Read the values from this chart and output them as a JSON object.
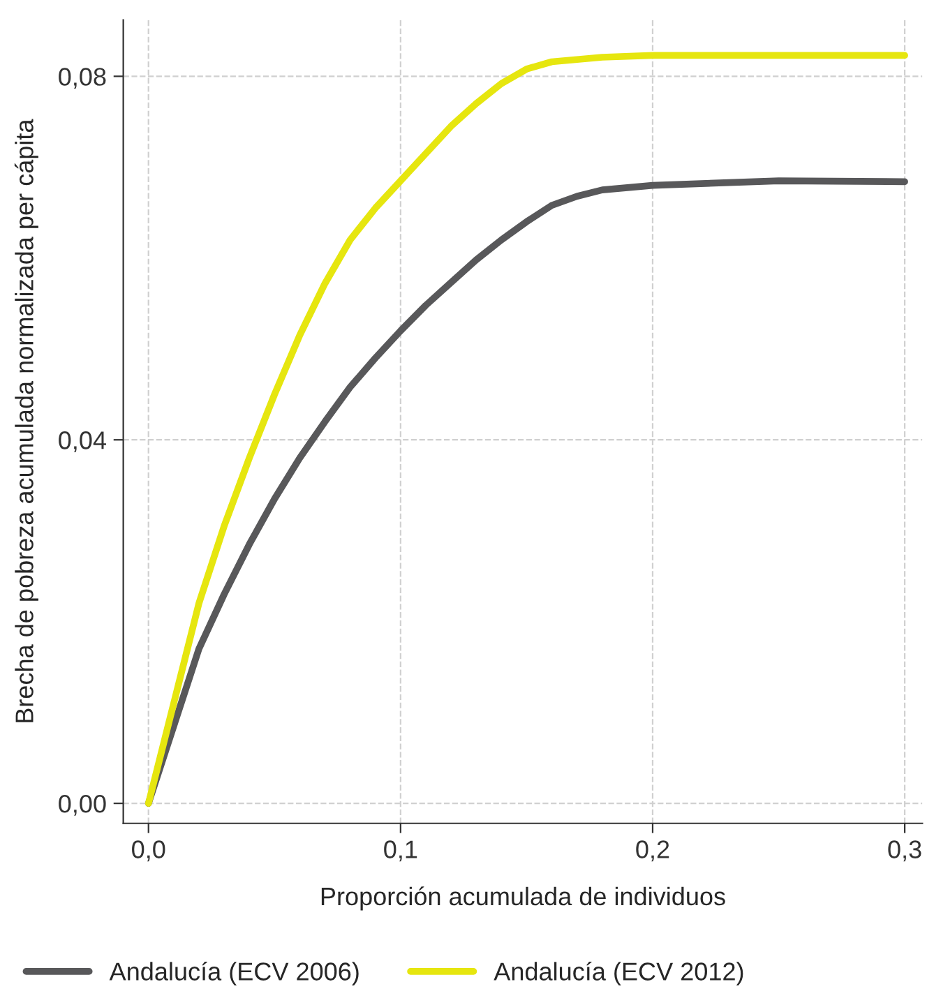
{
  "chart_data": {
    "type": "line",
    "xlabel": "Proporción acumulada de individuos",
    "ylabel": "Brecha de pobreza acumulada normalizada per cápita",
    "xlim": [
      -0.01,
      0.307
    ],
    "ylim": [
      -0.0022,
      0.0862
    ],
    "xticks": [
      {
        "value": 0,
        "label": "0,0"
      },
      {
        "value": 0.1,
        "label": "0,1"
      },
      {
        "value": 0.2,
        "label": "0,2"
      },
      {
        "value": 0.3,
        "label": "0,3"
      }
    ],
    "yticks": [
      {
        "value": 0,
        "label": "0,00"
      },
      {
        "value": 0.04,
        "label": "0,04"
      },
      {
        "value": 0.08,
        "label": "0,08"
      }
    ],
    "grid": true,
    "legend": "bottom left",
    "line_style": "solid",
    "marker": "none",
    "series": [
      {
        "name": "Andalucía (ECV 2006)",
        "color": "#58585a",
        "x": [
          0,
          0.01,
          0.02,
          0.03,
          0.04,
          0.05,
          0.06,
          0.07,
          0.08,
          0.09,
          0.1,
          0.11,
          0.12,
          0.13,
          0.14,
          0.15,
          0.16,
          0.17,
          0.18,
          0.2,
          0.25,
          0.3
        ],
        "values": [
          0,
          0.0085,
          0.017,
          0.023,
          0.0285,
          0.0335,
          0.038,
          0.042,
          0.0458,
          0.049,
          0.052,
          0.0548,
          0.0573,
          0.0598,
          0.062,
          0.064,
          0.0658,
          0.0668,
          0.0675,
          0.068,
          0.0685,
          0.0684
        ]
      },
      {
        "name": "Andalucía (ECV 2012)",
        "color": "#e6e60f",
        "x": [
          0,
          0.01,
          0.02,
          0.03,
          0.04,
          0.05,
          0.06,
          0.07,
          0.08,
          0.09,
          0.1,
          0.11,
          0.12,
          0.13,
          0.14,
          0.15,
          0.16,
          0.18,
          0.2,
          0.25,
          0.3
        ],
        "values": [
          0,
          0.011,
          0.022,
          0.0305,
          0.038,
          0.045,
          0.0515,
          0.0572,
          0.062,
          0.0655,
          0.0685,
          0.0715,
          0.0745,
          0.077,
          0.0792,
          0.0808,
          0.0816,
          0.0821,
          0.0823,
          0.0823,
          0.0823
        ]
      }
    ]
  }
}
